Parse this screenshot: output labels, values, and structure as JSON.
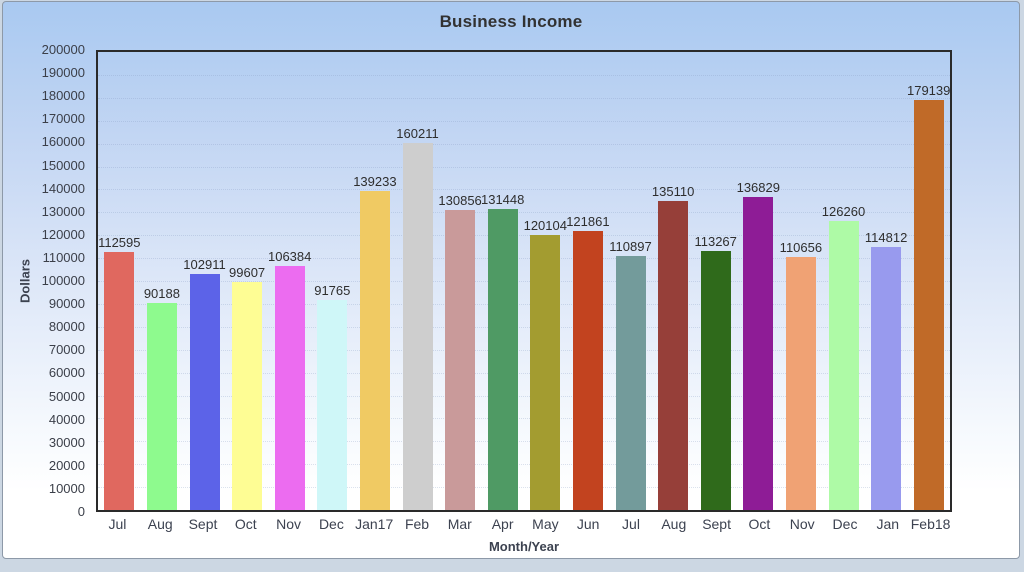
{
  "chart_data": {
    "type": "bar",
    "title": "Business Income",
    "xlabel": "Month/Year",
    "ylabel": "Dollars",
    "ylim": [
      0,
      200000
    ],
    "ytick_step": 10000,
    "ytick_labels": [
      "200000",
      "190000",
      "180000",
      "170000",
      "160000",
      "150000",
      "140000",
      "130000",
      "120000",
      "110000",
      "100000",
      "90000",
      "80000",
      "70000",
      "60000",
      "50000",
      "40000",
      "30000",
      "20000",
      "10000",
      "0"
    ],
    "grid": false,
    "legend": false,
    "categories": [
      "Jul",
      "Aug",
      "Sept",
      "Oct",
      "Nov",
      "Dec",
      "Jan17",
      "Feb",
      "Mar",
      "Apr",
      "May",
      "Jun",
      "Jul",
      "Aug",
      "Sept",
      "Oct",
      "Nov",
      "Dec",
      "Jan",
      "Feb18"
    ],
    "values": [
      112595,
      90188,
      102911,
      99607,
      106384,
      91765,
      139233,
      160211,
      130856,
      131448,
      120104,
      121861,
      110897,
      135110,
      113267,
      136829,
      110656,
      126260,
      114812,
      179139
    ],
    "bar_colors": [
      "#e0685f",
      "#8efa8e",
      "#5c63e8",
      "#fefd94",
      "#ec6cf0",
      "#cff7f8",
      "#f0ca63",
      "#cecece",
      "#c99a9a",
      "#4f9a64",
      "#a39c30",
      "#c2431f",
      "#739b9b",
      "#963f39",
      "#2f6a1b",
      "#8e1c96",
      "#f0a274",
      "#aefaa6",
      "#989aee",
      "#c06a28"
    ],
    "background_gradient_top": "#a9c9f1",
    "background_gradient_bottom": "#ffffff"
  }
}
